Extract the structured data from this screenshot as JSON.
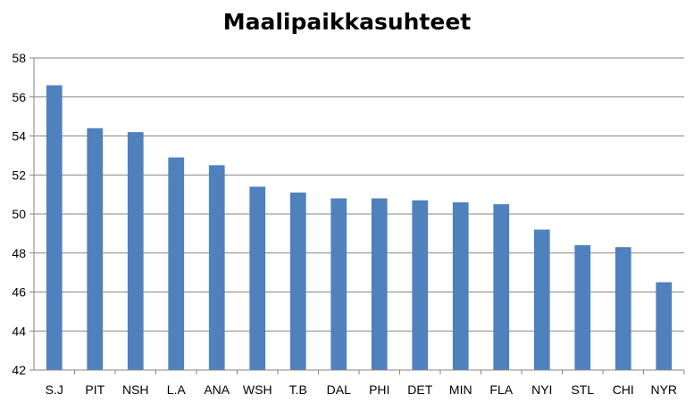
{
  "chart_data": {
    "type": "bar",
    "title": "Maalipaikkasuhteet",
    "xlabel": "",
    "ylabel": "",
    "categories": [
      "S.J",
      "PIT",
      "NSH",
      "L.A",
      "ANA",
      "WSH",
      "T.B",
      "DAL",
      "PHI",
      "DET",
      "MIN",
      "FLA",
      "NYI",
      "STL",
      "CHI",
      "NYR"
    ],
    "values": [
      56.6,
      54.4,
      54.2,
      52.9,
      52.5,
      51.4,
      51.1,
      50.8,
      50.8,
      50.7,
      50.6,
      50.5,
      49.2,
      48.4,
      48.3,
      46.5
    ],
    "ylim": [
      42,
      58
    ],
    "yticks": [
      "42",
      "44",
      "46",
      "48",
      "50",
      "52",
      "54",
      "56",
      "58"
    ],
    "grid": true,
    "legend": "none",
    "bar_color": "#4f81bd",
    "grid_color": "#868686"
  }
}
